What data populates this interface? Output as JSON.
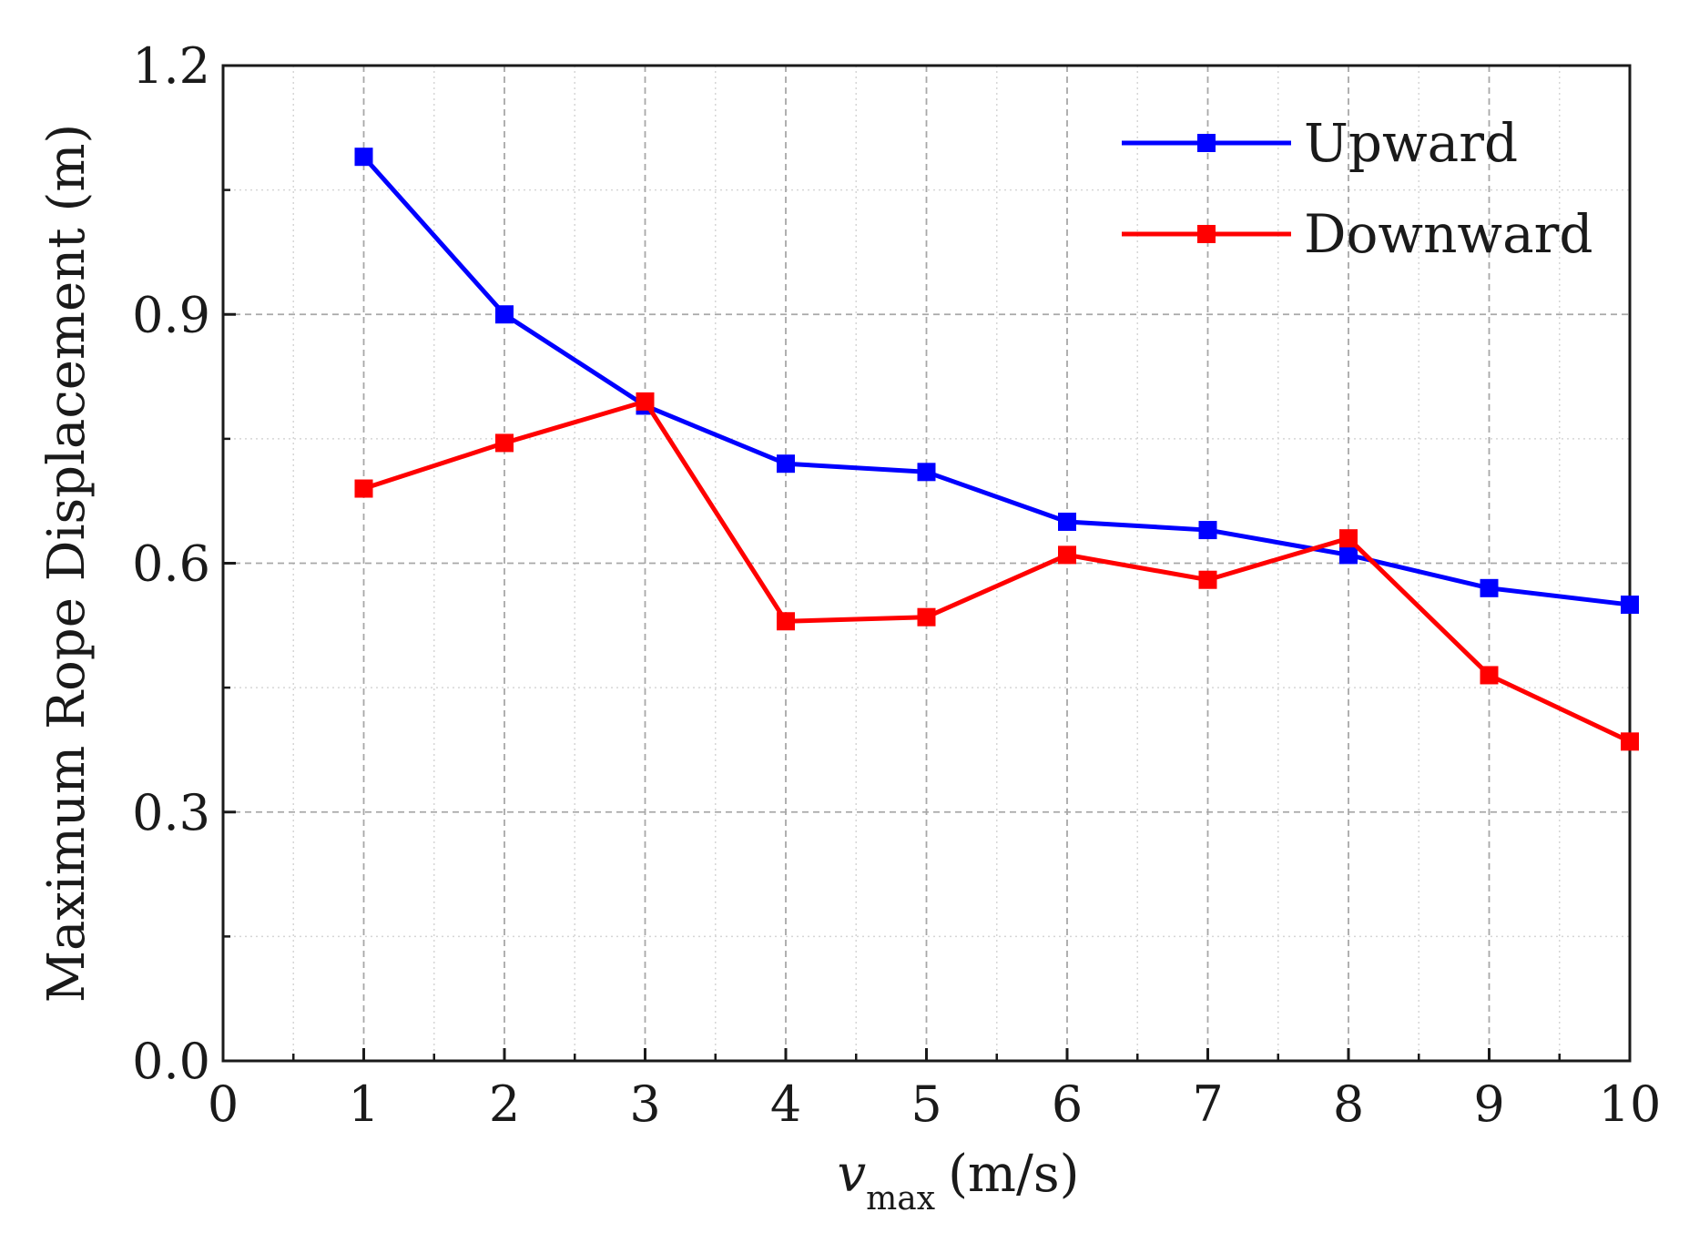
{
  "chart_data": {
    "type": "line",
    "title": "",
    "xlabel_main": "v",
    "xlabel_sub": "max",
    "xlabel_unit": "(m/s)",
    "ylabel": "Maximum Rope Displacement (m)",
    "xlim": [
      0,
      10
    ],
    "ylim": [
      0,
      1.2
    ],
    "x_major_ticks": [
      0,
      1,
      2,
      3,
      4,
      5,
      6,
      7,
      8,
      9,
      10
    ],
    "x_tick_labels": [
      "0",
      "1",
      "2",
      "3",
      "4",
      "5",
      "6",
      "7",
      "8",
      "9",
      "10"
    ],
    "x_minor_ticks": [
      0.5,
      1.5,
      2.5,
      3.5,
      4.5,
      5.5,
      6.5,
      7.5,
      8.5,
      9.5
    ],
    "y_major_ticks": [
      0,
      0.3,
      0.6,
      0.9,
      1.2
    ],
    "y_tick_labels": [
      "0.0",
      "0.3",
      "0.6",
      "0.9",
      "1.2"
    ],
    "y_minor_ticks": [
      0.15,
      0.45,
      0.75,
      1.05
    ],
    "grid": true,
    "legend_position": "top-right",
    "x": [
      1,
      2,
      3,
      4,
      5,
      6,
      7,
      8,
      9,
      10
    ],
    "series": [
      {
        "name": "Upward",
        "color": "#0000ff",
        "marker": "square",
        "values": [
          1.09,
          0.9,
          0.79,
          0.72,
          0.71,
          0.65,
          0.64,
          0.61,
          0.57,
          0.55
        ]
      },
      {
        "name": "Downward",
        "color": "#ff0000",
        "marker": "square",
        "values": [
          0.69,
          0.745,
          0.795,
          0.53,
          0.535,
          0.61,
          0.58,
          0.63,
          0.465,
          0.385
        ]
      }
    ]
  }
}
